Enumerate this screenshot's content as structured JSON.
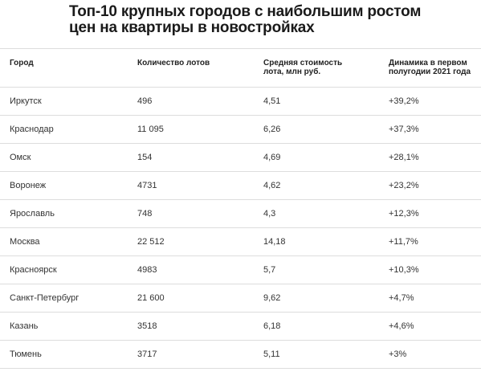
{
  "title": "Топ-10 крупных городов с наибольшим ростом цен на квартиры в новостройках",
  "table": {
    "headers": [
      "Город",
      "Количество лотов",
      "Средняя стоимость лота, млн руб.",
      "Динамика в первом полугодии 2021 года"
    ],
    "rows": [
      [
        "Иркутск",
        "496",
        "4,51",
        "+39,2%"
      ],
      [
        "Краснодар",
        "11 095",
        "6,26",
        "+37,3%"
      ],
      [
        "Омск",
        "154",
        "4,69",
        "+28,1%"
      ],
      [
        "Воронеж",
        "4731",
        "4,62",
        "+23,2%"
      ],
      [
        "Ярославль",
        "748",
        "4,3",
        "+12,3%"
      ],
      [
        "Москва",
        "22 512",
        "14,18",
        "+11,7%"
      ],
      [
        "Красноярск",
        "4983",
        "5,7",
        "+10,3%"
      ],
      [
        "Санкт-Петербург",
        "21 600",
        "9,62",
        "+4,7%"
      ],
      [
        "Казань",
        "3518",
        "6,18",
        "+4,6%"
      ],
      [
        "Тюмень",
        "3717",
        "5,11",
        "+3%"
      ]
    ]
  }
}
